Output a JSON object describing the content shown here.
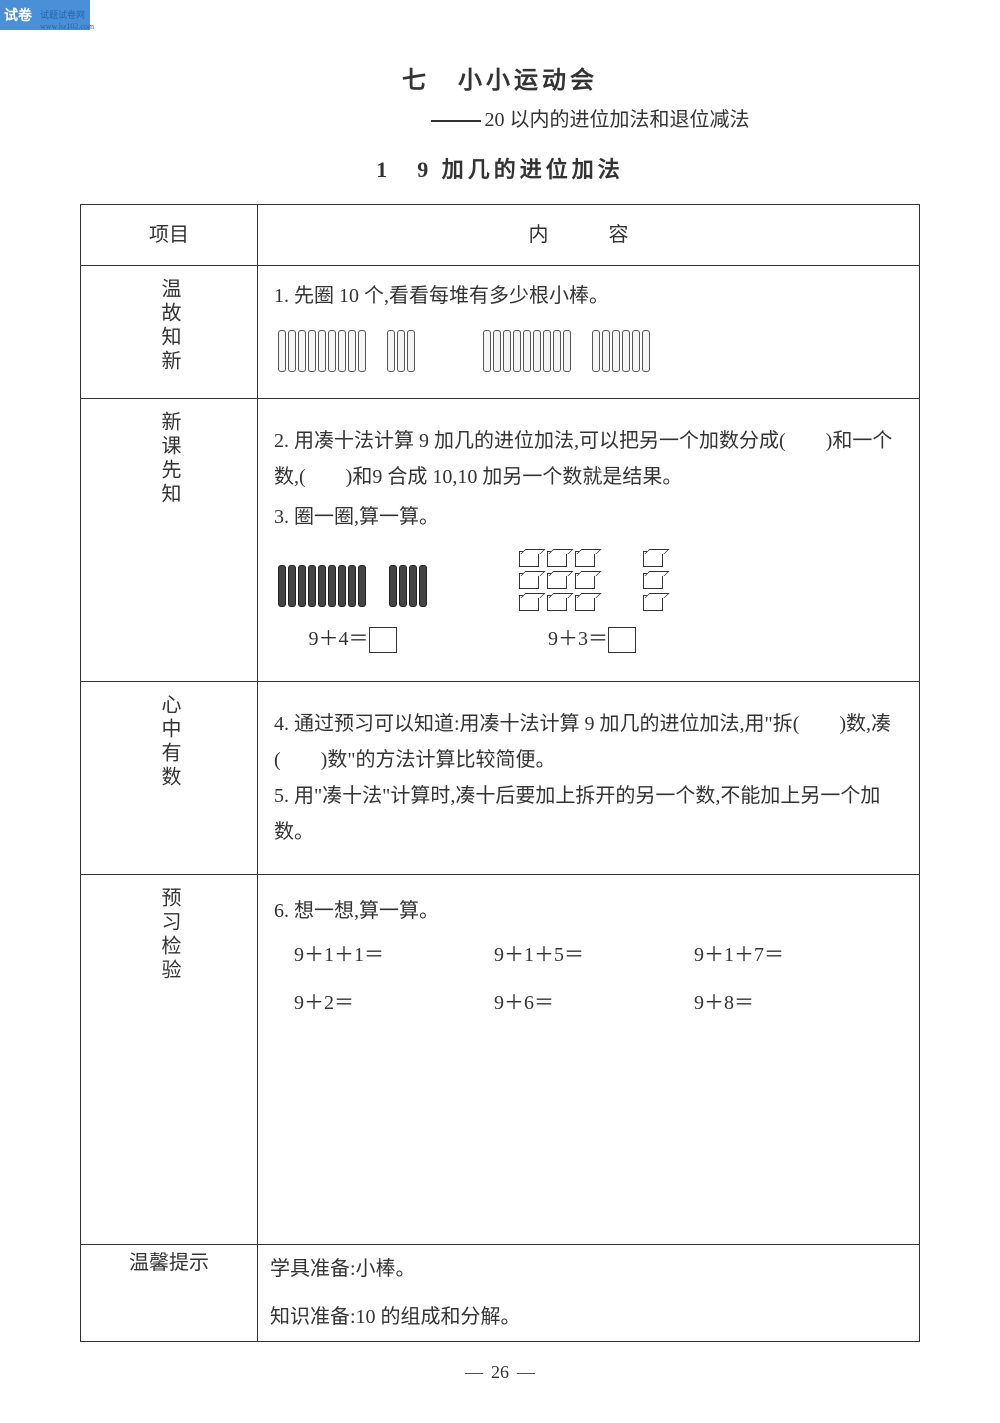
{
  "watermark": {
    "label": "试卷",
    "subtitle": "试题试卷网",
    "url": "www.hz102.com"
  },
  "titles": {
    "chapter": "七　小小运动会",
    "subtitle": "20 以内的进位加法和退位减法",
    "section": "1　9 加几的进位加法"
  },
  "table": {
    "header_col1": "项目",
    "header_col2": "内　容",
    "rows": {
      "r1_label": "温故知新",
      "r1_q1": "1. 先圈 10 个,看看每堆有多少根小棒。",
      "r1_sticks": {
        "group1a": 9,
        "group1b": 3,
        "group2a": 9,
        "group2b": 6
      },
      "r2_label": "新课先知",
      "r2_q2": "2. 用凑十法计算 9 加几的进位加法,可以把另一个加数分成(　　)和一个数,(　　)和9 合成 10,10 加另一个数就是结果。",
      "r2_q3": "3. 圈一圈,算一算。",
      "r2_eq1": "9＋4＝",
      "r2_eq2": "9＋3＝",
      "r2_sticks": {
        "group1a": 9,
        "group1b": 4
      },
      "r2_cubes": {
        "grid1_rows": 3,
        "grid1_cols": 3,
        "grid2_rows": 3,
        "grid2_cols": 1
      },
      "r3_label": "心中有数",
      "r3_q4": "4. 通过预习可以知道:用凑十法计算 9 加几的进位加法,用\"拆(　　)数,凑(　　)数\"的方法计算比较简便。",
      "r3_q5": "5. 用\"凑十法\"计算时,凑十后要加上拆开的另一个数,不能加上另一个加数。",
      "r4_label": "预习检验",
      "r4_q6": "6. 想一想,算一算。",
      "r4_eqs": [
        "9＋1＋1＝",
        "9＋1＋5＝",
        "9＋1＋7＝",
        "9＋2＝",
        "9＋6＝",
        "9＋8＝"
      ],
      "r5_label": "温馨提示",
      "r5_line1": "学具准备:小棒。",
      "r5_line2": "知识准备:10 的组成和分解。"
    }
  },
  "page_number": "26",
  "colors": {
    "text": "#333333",
    "border": "#333333",
    "background": "#ffffff",
    "watermark_bg": "#4a90d9"
  }
}
